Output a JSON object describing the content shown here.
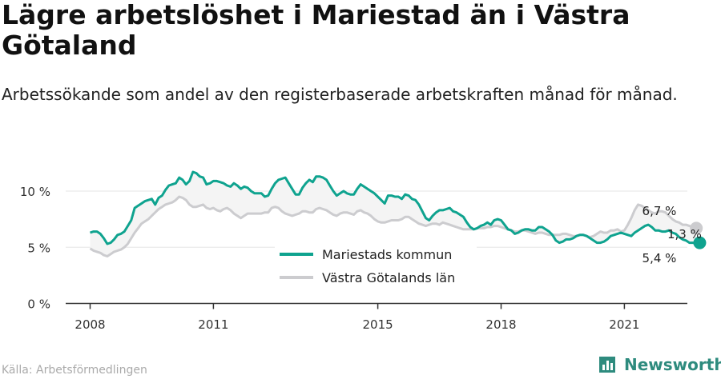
{
  "title": "Lägre arbetslöshet i Mariestad än i Västra Götaland",
  "subtitle": "Arbetssökande som andel av den registerbaserade arbetskraften månad för månad.",
  "source": "Källa: Arbetsförmedlingen",
  "brand": {
    "name": "Newsworthy",
    "icon": "newsworthy-logo-icon"
  },
  "colors": {
    "mariestad": "#0fa38f",
    "vastra": "#cccccf",
    "gap_fill": "#f4f4f4",
    "text": "#222222"
  },
  "chart_data": {
    "type": "line",
    "x_start": "2008-01",
    "x_frequency": "monthly",
    "x_ticks": [
      "2008",
      "2011",
      "2015",
      "2018",
      "2021"
    ],
    "y_ticks": [
      "0 %",
      "5 %",
      "10 %"
    ],
    "ylim": [
      0,
      12
    ],
    "xlabel": "",
    "ylabel": "",
    "legend_position": "bottom-center",
    "series": [
      {
        "name": "Mariestads kommun",
        "values": [
          6.3,
          6.4,
          6.4,
          6.2,
          5.8,
          5.3,
          5.4,
          5.7,
          6.1,
          6.2,
          6.4,
          6.9,
          7.4,
          8.5,
          8.7,
          8.9,
          9.1,
          9.2,
          9.3,
          8.8,
          9.4,
          9.6,
          10.1,
          10.5,
          10.6,
          10.7,
          11.2,
          11.0,
          10.6,
          10.9,
          11.7,
          11.6,
          11.3,
          11.2,
          10.6,
          10.7,
          10.9,
          10.9,
          10.8,
          10.7,
          10.5,
          10.4,
          10.7,
          10.5,
          10.2,
          10.4,
          10.3,
          10.0,
          9.8,
          9.8,
          9.8,
          9.5,
          9.6,
          10.2,
          10.7,
          11.0,
          11.1,
          11.2,
          10.7,
          10.2,
          9.7,
          9.7,
          10.3,
          10.7,
          11.0,
          10.8,
          11.3,
          11.3,
          11.2,
          11.0,
          10.5,
          10.0,
          9.6,
          9.8,
          10.0,
          9.8,
          9.7,
          9.7,
          10.2,
          10.6,
          10.4,
          10.2,
          10.0,
          9.8,
          9.5,
          9.2,
          8.9,
          9.6,
          9.6,
          9.5,
          9.5,
          9.3,
          9.7,
          9.6,
          9.3,
          9.2,
          8.8,
          8.2,
          7.6,
          7.4,
          7.8,
          8.1,
          8.3,
          8.3,
          8.4,
          8.5,
          8.2,
          8.1,
          7.9,
          7.7,
          7.2,
          6.8,
          6.6,
          6.7,
          6.9,
          7.0,
          7.2,
          7.0,
          7.4,
          7.5,
          7.4,
          7.0,
          6.6,
          6.5,
          6.2,
          6.3,
          6.5,
          6.6,
          6.6,
          6.5,
          6.5,
          6.8,
          6.8,
          6.6,
          6.4,
          6.1,
          5.6,
          5.4,
          5.5,
          5.7,
          5.7,
          5.8,
          6.0,
          6.1,
          6.1,
          6.0,
          5.8,
          5.6,
          5.4,
          5.4,
          5.5,
          5.7,
          6.0,
          6.1,
          6.2,
          6.3,
          6.2,
          6.1,
          6.0,
          6.3,
          6.5,
          6.7,
          6.9,
          7.0,
          6.8,
          6.5,
          6.5,
          6.4,
          6.4,
          6.5,
          6.3,
          6.2,
          5.9,
          5.7,
          5.6,
          5.4,
          5.4,
          5.3,
          5.4
        ]
      },
      {
        "name": "Västra Götalands län",
        "values": [
          4.9,
          4.7,
          4.6,
          4.5,
          4.3,
          4.2,
          4.4,
          4.6,
          4.7,
          4.8,
          5.0,
          5.3,
          5.8,
          6.3,
          6.7,
          7.1,
          7.3,
          7.5,
          7.8,
          8.1,
          8.4,
          8.6,
          8.8,
          8.9,
          9.0,
          9.2,
          9.5,
          9.4,
          9.2,
          8.8,
          8.6,
          8.6,
          8.7,
          8.8,
          8.5,
          8.4,
          8.5,
          8.3,
          8.2,
          8.4,
          8.5,
          8.3,
          8.0,
          7.8,
          7.6,
          7.8,
          8.0,
          8.0,
          8.0,
          8.0,
          8.0,
          8.1,
          8.1,
          8.5,
          8.6,
          8.5,
          8.2,
          8.0,
          7.9,
          7.8,
          7.9,
          8.0,
          8.2,
          8.2,
          8.1,
          8.1,
          8.4,
          8.5,
          8.4,
          8.3,
          8.1,
          7.9,
          7.8,
          8.0,
          8.1,
          8.1,
          8.0,
          7.9,
          8.2,
          8.3,
          8.1,
          8.0,
          7.8,
          7.5,
          7.3,
          7.2,
          7.2,
          7.3,
          7.4,
          7.4,
          7.4,
          7.5,
          7.7,
          7.7,
          7.5,
          7.3,
          7.1,
          7.0,
          6.9,
          7.0,
          7.1,
          7.1,
          7.0,
          7.2,
          7.1,
          7.0,
          6.9,
          6.8,
          6.7,
          6.6,
          6.6,
          6.6,
          6.6,
          6.7,
          6.7,
          6.7,
          6.8,
          6.8,
          6.9,
          6.9,
          6.8,
          6.7,
          6.6,
          6.5,
          6.4,
          6.4,
          6.5,
          6.5,
          6.4,
          6.3,
          6.2,
          6.3,
          6.3,
          6.2,
          6.1,
          6.1,
          6.1,
          6.1,
          6.2,
          6.2,
          6.1,
          6.0,
          6.0,
          6.1,
          6.1,
          6.0,
          5.9,
          6.0,
          6.2,
          6.4,
          6.3,
          6.3,
          6.5,
          6.5,
          6.6,
          6.4,
          6.5,
          7.0,
          7.6,
          8.3,
          8.8,
          8.7,
          8.5,
          8.3,
          8.1,
          8.0,
          8.2,
          8.2,
          8.1,
          7.8,
          7.5,
          7.3,
          7.2,
          7.0,
          7.0,
          6.9,
          6.8,
          6.7
        ]
      }
    ],
    "annotations": {
      "mariestad_last": "5,4 %",
      "vastra_last": "6,7 %",
      "difference": "1,3 %"
    }
  }
}
